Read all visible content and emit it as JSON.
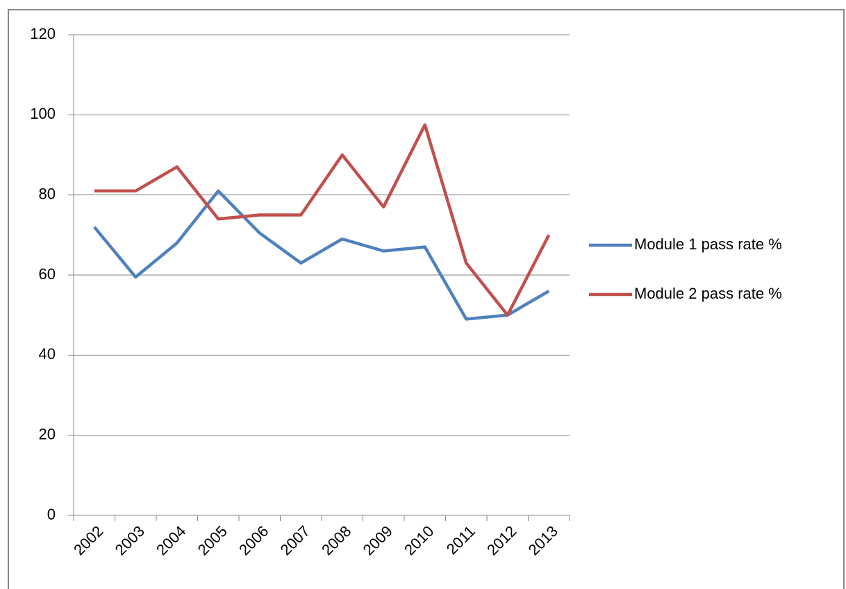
{
  "chart_data": {
    "type": "line",
    "categories": [
      "2002",
      "2003",
      "2004",
      "2005",
      "2006",
      "2007",
      "2008",
      "2009",
      "2010",
      "2011",
      "2012",
      "2013"
    ],
    "series": [
      {
        "name": "Module 1 pass rate %",
        "color": "#4f81bd",
        "values": [
          72,
          59.5,
          68,
          81,
          70.5,
          63,
          69,
          66,
          67,
          49,
          50,
          56
        ]
      },
      {
        "name": "Module 2 pass rate %",
        "color": "#c0504d",
        "values": [
          81,
          81,
          87,
          74,
          75,
          75,
          90,
          77,
          97.5,
          63,
          50,
          70
        ]
      }
    ],
    "ylim": [
      0,
      120
    ],
    "yticks": [
      0,
      20,
      40,
      60,
      80,
      100,
      120
    ],
    "grid": true,
    "legend": "right"
  }
}
